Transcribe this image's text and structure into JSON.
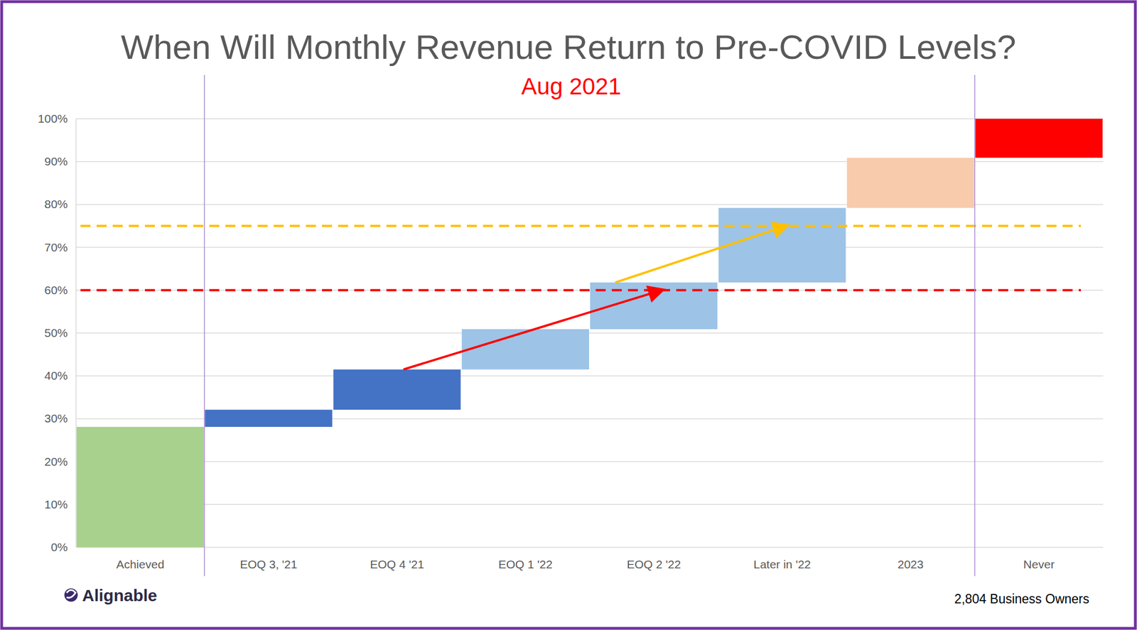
{
  "chart_data": {
    "type": "waterfall",
    "title": "When Will Monthly Revenue Return to Pre-COVID Levels?",
    "subtitle": "Aug 2021",
    "categories": [
      "Achieved",
      "EOQ 3, '21",
      "EOQ 4 '21",
      "EOQ 1 '22",
      "EOQ 2 '22",
      "Later in '22",
      "2023",
      "Never"
    ],
    "values": [
      28.1,
      4.0,
      9.4,
      9.4,
      10.9,
      17.4,
      11.7,
      9.1
    ],
    "colors": [
      "#a9d18e",
      "#4472c4",
      "#4472c4",
      "#9dc3e6",
      "#9dc3e6",
      "#9dc3e6",
      "#f8cbad",
      "#ff0000"
    ],
    "reference_lines": [
      {
        "value": 60,
        "color": "#ff0000"
      },
      {
        "value": 75,
        "color": "#ffc000"
      }
    ],
    "ylim": [
      0,
      100
    ],
    "yticks": [
      {
        "value": 0,
        "label": "0%"
      },
      {
        "value": 10,
        "label": "10%"
      },
      {
        "value": 20,
        "label": "20%"
      },
      {
        "value": 30,
        "label": "30%"
      },
      {
        "value": 40,
        "label": "40%"
      },
      {
        "value": 50,
        "label": "50%"
      },
      {
        "value": 60,
        "label": "60%"
      },
      {
        "value": 70,
        "label": "70%"
      },
      {
        "value": 80,
        "label": "80%"
      },
      {
        "value": 90,
        "label": "90%"
      },
      {
        "value": 100,
        "label": "100%"
      }
    ],
    "grid": true,
    "source": "Alignable",
    "note": "2,804 Business Owners"
  }
}
